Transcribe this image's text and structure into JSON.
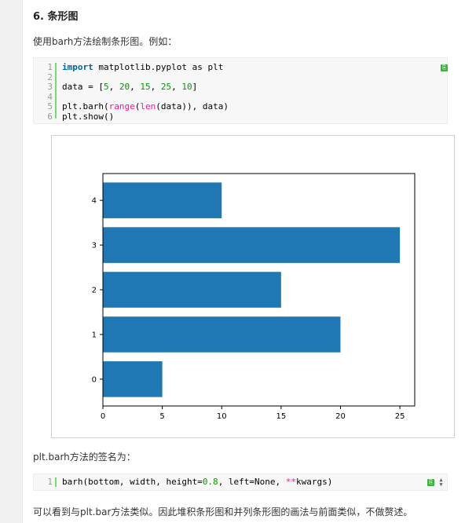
{
  "heading": "6. 条形图",
  "intro": "使用barh方法绘制条形图。例如：",
  "code_block_1": {
    "line_numbers": [
      "1",
      "2",
      "3",
      "4",
      "5",
      "6"
    ],
    "lines": [
      [
        {
          "t": "import",
          "c": "kw"
        },
        {
          "t": " matplotlib.pyplot as plt",
          "c": ""
        }
      ],
      [],
      [
        {
          "t": "data = [",
          "c": ""
        },
        {
          "t": "5",
          "c": "num"
        },
        {
          "t": ", ",
          "c": ""
        },
        {
          "t": "20",
          "c": "num"
        },
        {
          "t": ", ",
          "c": ""
        },
        {
          "t": "15",
          "c": "num"
        },
        {
          "t": ", ",
          "c": ""
        },
        {
          "t": "25",
          "c": "num"
        },
        {
          "t": ", ",
          "c": ""
        },
        {
          "t": "10",
          "c": "num"
        },
        {
          "t": "]",
          "c": ""
        }
      ],
      [],
      [
        {
          "t": "plt.barh(",
          "c": ""
        },
        {
          "t": "range",
          "c": "fn"
        },
        {
          "t": "(",
          "c": ""
        },
        {
          "t": "len",
          "c": "fn"
        },
        {
          "t": "(data)), data)",
          "c": ""
        }
      ],
      [
        {
          "t": "plt.show()",
          "c": ""
        }
      ]
    ],
    "copy_icon": "copy-icon"
  },
  "chart_data": {
    "type": "bar",
    "orientation": "horizontal",
    "categories": [
      "0",
      "1",
      "2",
      "3",
      "4"
    ],
    "values": [
      5,
      20,
      15,
      25,
      10
    ],
    "xticks": [
      "0",
      "5",
      "10",
      "15",
      "20",
      "25"
    ],
    "yticks": [
      "0",
      "1",
      "2",
      "3",
      "4"
    ],
    "xlim": [
      0,
      26.25
    ],
    "ylim": [
      -0.6,
      4.6
    ],
    "bar_height": 0.8,
    "bar_color": "#1f77b4",
    "title": "",
    "xlabel": "",
    "ylabel": "",
    "grid": false
  },
  "signature_intro": "plt.barh方法的签名为：",
  "code_block_2": {
    "line_numbers": [
      "1"
    ],
    "lines": [
      [
        {
          "t": "barh(bottom, width, height=",
          "c": ""
        },
        {
          "t": "0.8",
          "c": "num"
        },
        {
          "t": ", left=None, ",
          "c": ""
        },
        {
          "t": "**",
          "c": "fn"
        },
        {
          "t": "kwargs)",
          "c": ""
        }
      ]
    ],
    "copy_icon": "copy-icon",
    "scroll_icon": "scroll-icon"
  },
  "closing": "可以看到与plt.bar方法类似。因此堆积条形图和并列条形图的画法与前面类似，不做赘述。"
}
